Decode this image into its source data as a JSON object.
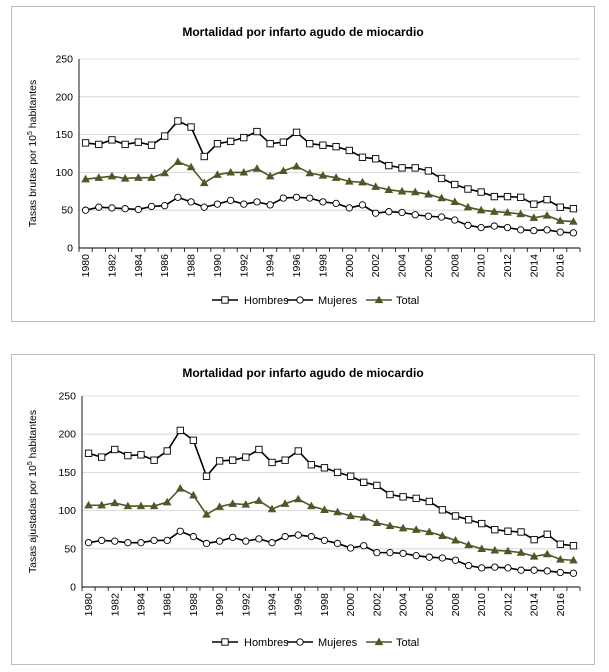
{
  "chart_data": [
    {
      "type": "line",
      "title": "Mortalidad por infarto agudo de miocardio",
      "ylabel_main": "Tasas brutas por 10",
      "ylabel_sup": "5",
      "ylabel_tail": " habitantes",
      "ylim": [
        0,
        250
      ],
      "yticks": [
        0,
        50,
        100,
        150,
        200,
        250
      ],
      "grid": true,
      "legend_position": "bottom",
      "x": [
        1980,
        1981,
        1982,
        1983,
        1984,
        1985,
        1986,
        1987,
        1988,
        1989,
        1990,
        1991,
        1992,
        1993,
        1994,
        1995,
        1996,
        1997,
        1998,
        1999,
        2000,
        2001,
        2002,
        2003,
        2004,
        2005,
        2006,
        2007,
        2008,
        2009,
        2010,
        2011,
        2012,
        2013,
        2014,
        2015,
        2016,
        2017
      ],
      "xtick_labels": [
        "1980",
        "1982",
        "1984",
        "1986",
        "1988",
        "1990",
        "1992",
        "1994",
        "1996",
        "1998",
        "2000",
        "2002",
        "2004",
        "2006",
        "2008",
        "2010",
        "2012",
        "2014",
        "2016"
      ],
      "series": [
        {
          "name": "Hombres",
          "marker": "square",
          "values": [
            139,
            137,
            143,
            137,
            140,
            136,
            148,
            168,
            160,
            121,
            138,
            141,
            146,
            154,
            138,
            140,
            153,
            138,
            136,
            134,
            129,
            120,
            118,
            109,
            106,
            106,
            102,
            92,
            84,
            78,
            74,
            68,
            68,
            67,
            58,
            64,
            54,
            52
          ]
        },
        {
          "name": "Mujeres",
          "marker": "circle",
          "values": [
            50,
            54,
            53,
            52,
            51,
            55,
            56,
            67,
            61,
            54,
            58,
            63,
            58,
            61,
            57,
            66,
            67,
            66,
            61,
            59,
            53,
            57,
            46,
            48,
            47,
            44,
            42,
            41,
            37,
            30,
            27,
            29,
            27,
            24,
            23,
            24,
            21,
            20
          ]
        },
        {
          "name": "Total",
          "marker": "triangle",
          "values": [
            91,
            93,
            95,
            92,
            93,
            93,
            99,
            114,
            107,
            86,
            97,
            100,
            100,
            105,
            95,
            102,
            108,
            99,
            96,
            93,
            88,
            87,
            81,
            77,
            75,
            74,
            71,
            66,
            61,
            54,
            50,
            48,
            47,
            45,
            40,
            43,
            36,
            35
          ]
        }
      ]
    },
    {
      "type": "line",
      "title": "Mortalidad por infarto agudo de miocardio",
      "ylabel_main": "Tasas ajustadas por 10",
      "ylabel_sup": "5",
      "ylabel_tail": " habitantes",
      "ylim": [
        0,
        250
      ],
      "yticks": [
        0,
        50,
        100,
        150,
        200,
        250
      ],
      "grid": true,
      "legend_position": "bottom",
      "x": [
        1980,
        1981,
        1982,
        1983,
        1984,
        1985,
        1986,
        1987,
        1988,
        1989,
        1990,
        1991,
        1992,
        1993,
        1994,
        1995,
        1996,
        1997,
        1998,
        1999,
        2000,
        2001,
        2002,
        2003,
        2004,
        2005,
        2006,
        2007,
        2008,
        2009,
        2010,
        2011,
        2012,
        2013,
        2014,
        2015,
        2016,
        2017
      ],
      "xtick_labels": [
        "1980",
        "1982",
        "1984",
        "1986",
        "1988",
        "1990",
        "1992",
        "1994",
        "1996",
        "1998",
        "2000",
        "2002",
        "2004",
        "2006",
        "2008",
        "2010",
        "2012",
        "2014",
        "2016"
      ],
      "series": [
        {
          "name": "Hombres",
          "marker": "square",
          "values": [
            175,
            170,
            180,
            172,
            173,
            166,
            178,
            205,
            192,
            145,
            165,
            166,
            170,
            180,
            163,
            166,
            178,
            160,
            156,
            150,
            145,
            137,
            133,
            121,
            118,
            116,
            112,
            101,
            93,
            88,
            83,
            75,
            73,
            72,
            62,
            69,
            56,
            54
          ]
        },
        {
          "name": "Mujeres",
          "marker": "circle",
          "values": [
            58,
            61,
            60,
            58,
            58,
            61,
            61,
            73,
            66,
            57,
            60,
            65,
            60,
            63,
            58,
            66,
            68,
            66,
            61,
            57,
            51,
            54,
            45,
            45,
            44,
            41,
            39,
            38,
            35,
            28,
            25,
            26,
            25,
            22,
            22,
            21,
            19,
            18
          ]
        },
        {
          "name": "Total",
          "marker": "triangle",
          "values": [
            107,
            107,
            110,
            106,
            106,
            106,
            111,
            129,
            120,
            95,
            105,
            109,
            108,
            113,
            102,
            109,
            115,
            106,
            101,
            98,
            93,
            91,
            84,
            80,
            77,
            75,
            72,
            67,
            61,
            55,
            50,
            48,
            47,
            45,
            40,
            43,
            36,
            35
          ]
        }
      ]
    }
  ]
}
